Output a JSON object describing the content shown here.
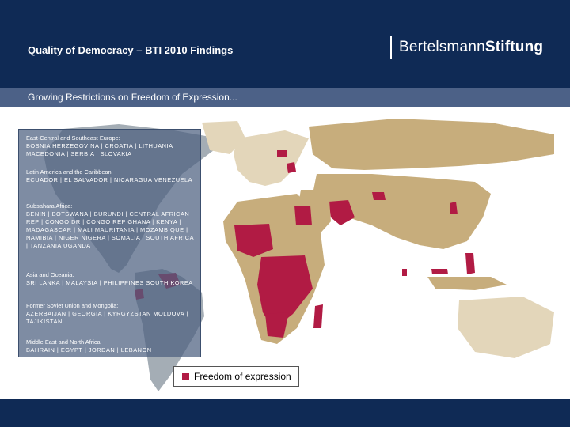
{
  "header": {
    "title": "Quality of Democracy – BTI 2010 Findings",
    "brand_prefix": "Bertelsmann",
    "brand_suffix": "Stiftung"
  },
  "subheader": {
    "title": "Growing Restrictions on Freedom of Expression..."
  },
  "regions": [
    {
      "title": "East-Central and Southeast Europe:",
      "countries": "BOSNIA HERZEGOVINA | CROATIA | LITHUANIA MACEDONIA | SERBIA | SLOVAKIA"
    },
    {
      "title": "Latin America and the Caribbean:",
      "countries": "ECUADOR | EL SALVADOR | NICARAGUA VENEZUELA"
    },
    {
      "title": "Subsahara Africa:",
      "countries": "BENIN | BOTSWANA | BURUNDI | CENTRAL AFRICAN REP | CONGO DR | CONGO REP GHANA | KENYA | MADAGASCAR | MALI MAURITANIA | MOZAMBIQUE | NAMIBIA | NIGER NIGERA | SOMALIA | SOUTH AFRICA | TANZANIA UGANDA"
    },
    {
      "title": "Asia and Oceania:",
      "countries": "SRI LANKA | MALAYSIA | PHILIPPINES SOUTH KOREA"
    },
    {
      "title": "Former Soviet Union and Mongolia:",
      "countries": "AZERBAIJAN | GEORGIA | KYRGYZSTAN MOLDOVA | TAJIKISTAN"
    },
    {
      "title": "Middle East and North Africa",
      "countries": "BAHRAIN | EGYPT | JORDAN | LEBANON"
    }
  ],
  "legend": {
    "label": "Freedom of expression",
    "highlight_color": "#b11b44"
  },
  "colors": {
    "header_bg": "#0f2a55",
    "subbar_bg": "#4c6187",
    "land": "#c7ad7c",
    "land_light": "#e3d6ba",
    "highlight": "#b11b44"
  }
}
